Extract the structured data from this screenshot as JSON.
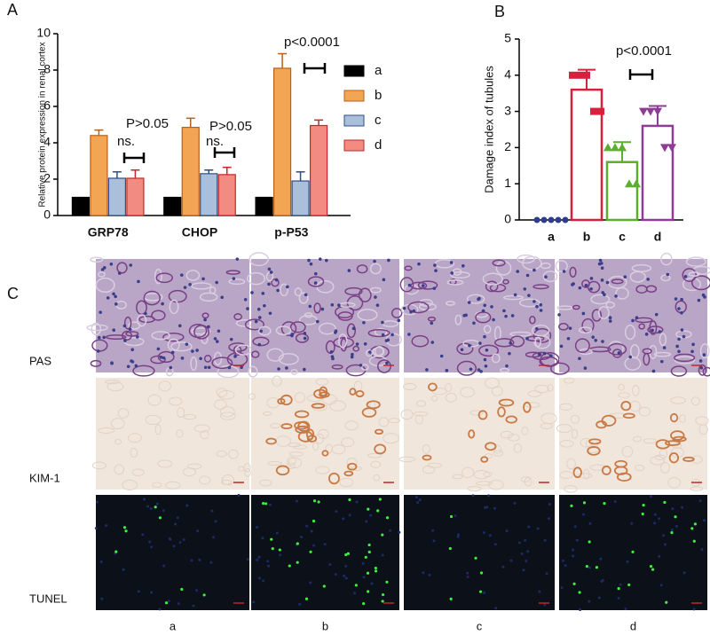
{
  "chart_data": [
    {
      "type": "bar",
      "panel_label": "A",
      "ylabel": "Relative protein expression in renal cortex",
      "categories": [
        "GRP78",
        "CHOP",
        "p-P53"
      ],
      "series": [
        {
          "name": "a",
          "color": "#000000",
          "edge": "#000000",
          "values": [
            1,
            1,
            1
          ]
        },
        {
          "name": "b",
          "color": "#f2a553",
          "edge": "#b8601c",
          "values": [
            4.4,
            4.85,
            8.1
          ],
          "errors": [
            0.3,
            0.5,
            0.8
          ]
        },
        {
          "name": "c",
          "color": "#a9bfdc",
          "edge": "#2f4f7f",
          "values": [
            2.05,
            2.3,
            1.9
          ],
          "errors": [
            0.35,
            0.2,
            0.5
          ]
        },
        {
          "name": "d",
          "color": "#f28b82",
          "edge": "#c0282a",
          "values": [
            2.05,
            2.25,
            4.95
          ],
          "errors": [
            0.45,
            0.4,
            0.3
          ]
        }
      ],
      "ylim": [
        0,
        10
      ],
      "yticks": [
        0,
        2,
        4,
        6,
        8,
        10
      ],
      "legend": "right",
      "annotations": [
        "P>0.05",
        "ns.",
        "P>0.05",
        "ns.",
        "p<0.0001"
      ]
    },
    {
      "type": "strip",
      "panel_label": "B",
      "ylabel": "Damage index of tubules",
      "categories": [
        "a",
        "b",
        "c",
        "d"
      ],
      "colors": [
        "#2e3d8f",
        "#d6213c",
        "#5cae2e",
        "#8e3c97"
      ],
      "markers": [
        "circle",
        "square",
        "triangle-up",
        "triangle-down"
      ],
      "values": [
        0,
        3.6,
        1.6,
        2.6
      ],
      "errors": [
        null,
        0.55,
        0.55,
        0.55
      ],
      "points": [
        [
          0,
          0,
          0,
          0,
          0
        ],
        [
          4,
          4,
          4,
          3,
          3
        ],
        [
          2,
          2,
          2,
          1,
          1
        ],
        [
          3,
          3,
          3,
          2,
          2
        ]
      ],
      "ylim": [
        0,
        5
      ],
      "yticks": [
        0,
        1,
        2,
        3,
        4,
        5
      ],
      "annotations": [
        "p<0.0001"
      ]
    }
  ],
  "micrographs": {
    "panel_label": "C",
    "rows": [
      "PAS",
      "KIM-1",
      "TUNEL"
    ],
    "columns": [
      "a",
      "b",
      "c",
      "d"
    ]
  }
}
